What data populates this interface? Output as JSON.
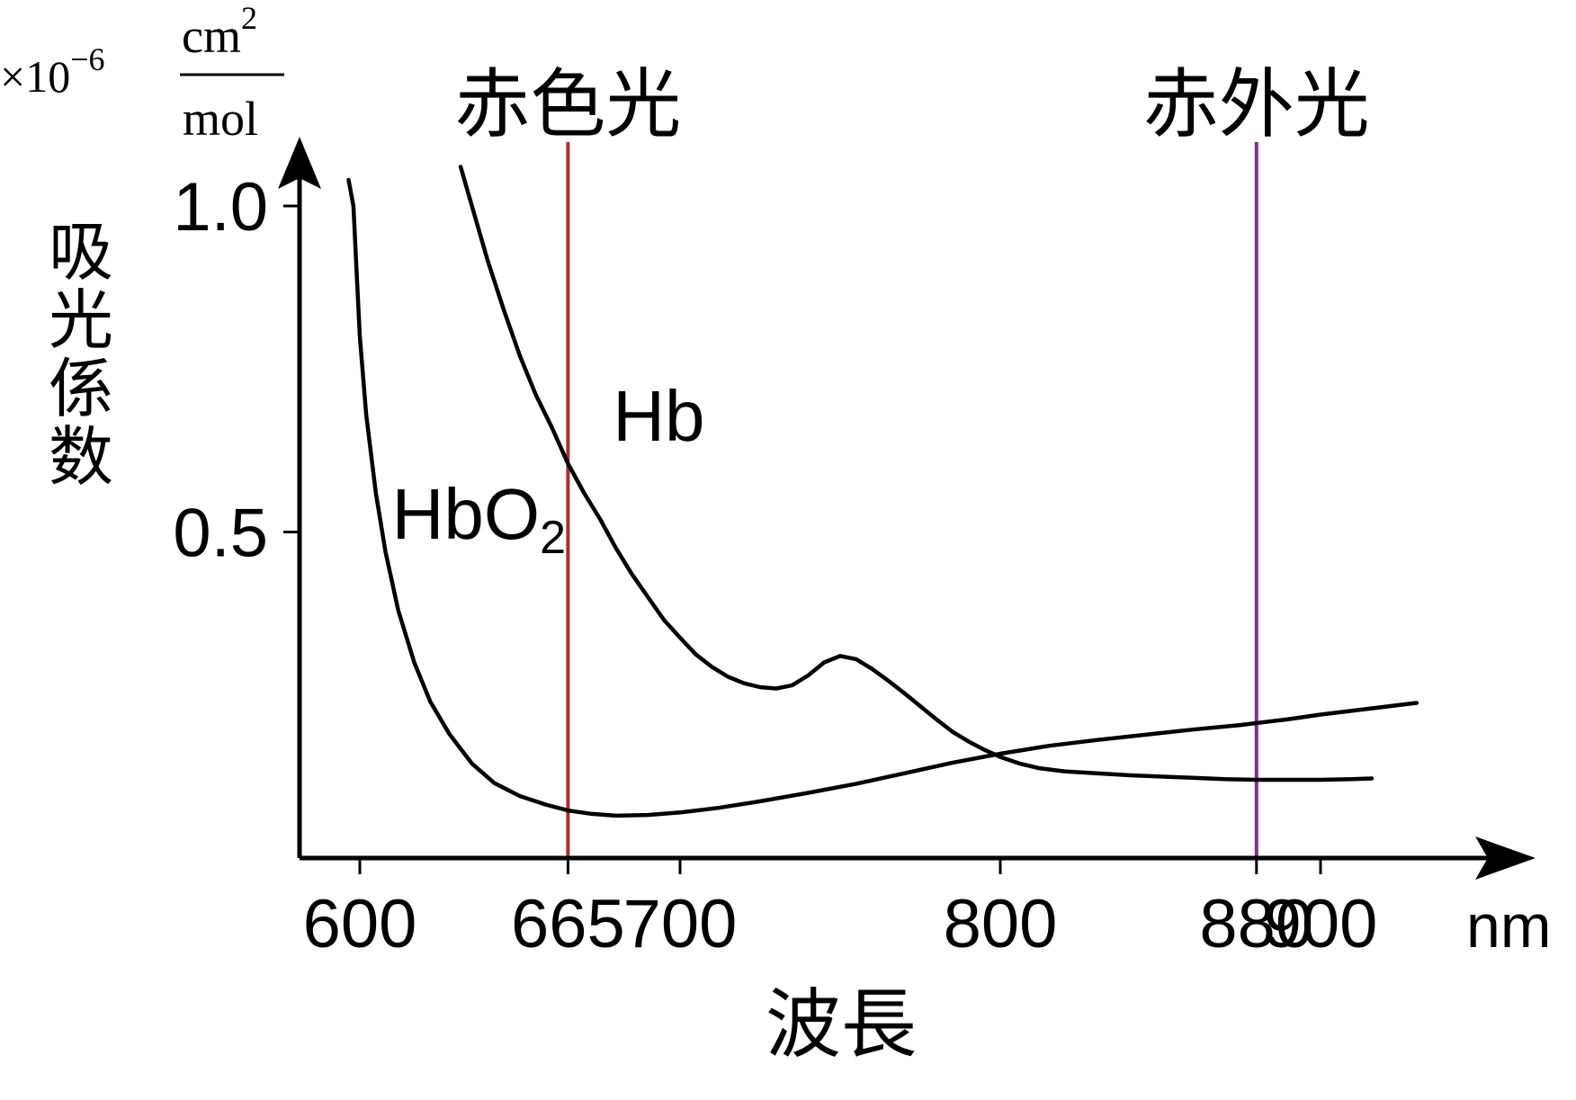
{
  "chart_data": {
    "type": "line",
    "title": "",
    "xlabel": "波長",
    "ylabel": "吸光係数",
    "x_unit": "nm",
    "y_unit": {
      "multiplier": "×10",
      "exponent": "−6",
      "numerator": "cm",
      "numerator_exp": "2",
      "denominator": "mol"
    },
    "xlim": [
      591,
      965
    ],
    "ylim": [
      0,
      1.05
    ],
    "x_ticks": [
      {
        "value": 600,
        "label": "600"
      },
      {
        "value": 665,
        "label": "665"
      },
      {
        "value": 700,
        "label": "700"
      },
      {
        "value": 800,
        "label": "800"
      },
      {
        "value": 880,
        "label": "880"
      },
      {
        "value": 900,
        "label": "900"
      }
    ],
    "y_ticks": [
      {
        "value": 0.5,
        "label": "0.5"
      },
      {
        "value": 1.0,
        "label": "1.0"
      }
    ],
    "grid": false,
    "series": [
      {
        "name": "HbO",
        "name_sub": "2",
        "color": "#000000",
        "points": [
          [
            596.5,
            1.04
          ],
          [
            598,
            1.0
          ],
          [
            599,
            0.9
          ],
          [
            600,
            0.8
          ],
          [
            602,
            0.68
          ],
          [
            605,
            0.56
          ],
          [
            608,
            0.47
          ],
          [
            612,
            0.38
          ],
          [
            617,
            0.3
          ],
          [
            622,
            0.24
          ],
          [
            628,
            0.19
          ],
          [
            635,
            0.145
          ],
          [
            642,
            0.115
          ],
          [
            650,
            0.095
          ],
          [
            658,
            0.082
          ],
          [
            665,
            0.073
          ],
          [
            672,
            0.068
          ],
          [
            680,
            0.065
          ],
          [
            690,
            0.066
          ],
          [
            700,
            0.07
          ],
          [
            712,
            0.077
          ],
          [
            725,
            0.087
          ],
          [
            740,
            0.1
          ],
          [
            755,
            0.114
          ],
          [
            770,
            0.13
          ],
          [
            785,
            0.146
          ],
          [
            800,
            0.16
          ],
          [
            815,
            0.172
          ],
          [
            830,
            0.181
          ],
          [
            845,
            0.189
          ],
          [
            860,
            0.197
          ],
          [
            875,
            0.204
          ],
          [
            880,
            0.207
          ],
          [
            890,
            0.213
          ],
          [
            900,
            0.22
          ],
          [
            915,
            0.229
          ],
          [
            930,
            0.238
          ]
        ],
        "label_at": [
          610,
          0.49
        ]
      },
      {
        "name": "Hb",
        "color": "#000000",
        "points": [
          [
            631.5,
            1.06
          ],
          [
            635,
            1.0
          ],
          [
            640,
            0.915
          ],
          [
            645,
            0.84
          ],
          [
            650,
            0.77
          ],
          [
            655,
            0.71
          ],
          [
            660,
            0.66
          ],
          [
            665,
            0.605
          ],
          [
            670,
            0.56
          ],
          [
            675,
            0.52
          ],
          [
            680,
            0.475
          ],
          [
            685,
            0.435
          ],
          [
            690,
            0.4
          ],
          [
            695,
            0.365
          ],
          [
            700,
            0.338
          ],
          [
            705,
            0.312
          ],
          [
            710,
            0.293
          ],
          [
            715,
            0.278
          ],
          [
            720,
            0.268
          ],
          [
            725,
            0.262
          ],
          [
            730,
            0.26
          ],
          [
            735,
            0.265
          ],
          [
            740,
            0.28
          ],
          [
            745,
            0.3
          ],
          [
            750,
            0.31
          ],
          [
            755,
            0.305
          ],
          [
            760,
            0.29
          ],
          [
            765,
            0.272
          ],
          [
            770,
            0.253
          ],
          [
            775,
            0.233
          ],
          [
            780,
            0.213
          ],
          [
            785,
            0.194
          ],
          [
            790,
            0.179
          ],
          [
            795,
            0.166
          ],
          [
            800,
            0.155
          ],
          [
            806,
            0.145
          ],
          [
            812,
            0.138
          ],
          [
            820,
            0.133
          ],
          [
            830,
            0.13
          ],
          [
            840,
            0.127
          ],
          [
            850,
            0.125
          ],
          [
            860,
            0.123
          ],
          [
            870,
            0.121
          ],
          [
            880,
            0.12
          ],
          [
            890,
            0.12
          ],
          [
            900,
            0.12
          ],
          [
            910,
            0.121
          ],
          [
            916,
            0.122
          ]
        ],
        "label_at": [
          679,
          0.64
        ]
      }
    ],
    "markers": [
      {
        "x": 665,
        "label": "赤色光",
        "color": "#b22a2a"
      },
      {
        "x": 880,
        "label": "赤外光",
        "color": "#8a2a8c"
      }
    ]
  }
}
